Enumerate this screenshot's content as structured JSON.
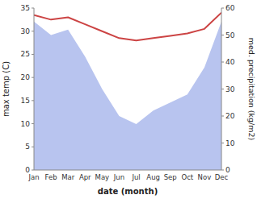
{
  "chart_data": {
    "type": "line",
    "xlabel": "date (month)",
    "ylabel": "max temp (C)",
    "y2label": "med. precipitation (kg/m2)",
    "categories": [
      "Jan",
      "Feb",
      "Mar",
      "Apr",
      "May",
      "Jun",
      "Jul",
      "Aug",
      "Sep",
      "Oct",
      "Nov",
      "Dec"
    ],
    "series": [
      {
        "type": "area",
        "axis": "y2",
        "color": "#b8c4ef",
        "values": [
          55.0,
          50.0,
          52.0,
          42.0,
          30.0,
          20.0,
          17.0,
          22.0,
          25.0,
          28.0,
          38.0,
          55.0
        ]
      },
      {
        "type": "line",
        "color": "#cc4444",
        "values": [
          33.5,
          32.5,
          33.0,
          31.5,
          30.0,
          28.5,
          28.0,
          28.5,
          29.0,
          29.5,
          30.5,
          34.0
        ]
      }
    ],
    "ylim": [
      0,
      35
    ],
    "yticks": [
      0,
      5,
      10,
      15,
      20,
      25,
      30,
      35
    ],
    "y2lim": [
      0,
      60
    ],
    "y2ticks": [
      0,
      10,
      20,
      30,
      40,
      50,
      60
    ],
    "grid": false
  }
}
